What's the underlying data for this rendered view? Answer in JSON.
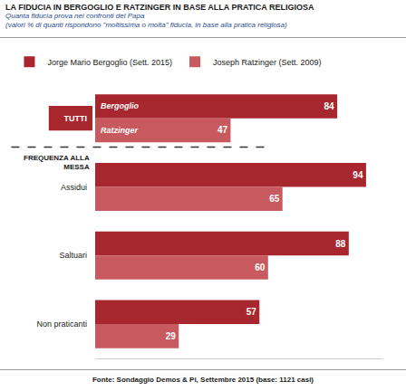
{
  "chart_data": {
    "type": "bar",
    "orientation": "horizontal",
    "title": "LA FIDUCIA IN BERGOGLIO E RATZINGER IN BASE ALLA PRATICA RELIGIOSA",
    "subtitle": [
      "Quanta fiducia prova nei confronti del Papa",
      "(valori % di quanti rispondono \"moltissima o molta\" fiducia, in base alla pratica religiosa)"
    ],
    "source": "Fonte: Sondaggio Demos & Pi, Settembre 2015 (base: 1121 casi)",
    "categories": [
      "TUTTI",
      "Assidui",
      "Saltuari",
      "Non praticanti"
    ],
    "series": [
      {
        "name": "Jorge Mario Bergoglio (Sett. 2015)",
        "color": "#a8262d",
        "values": [
          84,
          94,
          88,
          57
        ]
      },
      {
        "name": "Joseph Ratzinger (Sett. 2009)",
        "color": "#c85a5f",
        "values": [
          47,
          65,
          60,
          29
        ]
      }
    ],
    "annotations": [
      {
        "text": "Bergoglio",
        "category": "TUTTI",
        "series": "Jorge Mario Bergoglio (Sett. 2015)"
      },
      {
        "text": "Ratzinger",
        "category": "TUTTI",
        "series": "Joseph Ratzinger (Sett. 2009)"
      },
      {
        "text": "FREQUENZA ALLA MESSA"
      }
    ],
    "xlim": [
      0,
      100
    ],
    "xticks": [],
    "data_labels": true,
    "tick_labels": "y",
    "legend": "top",
    "grid": false
  }
}
